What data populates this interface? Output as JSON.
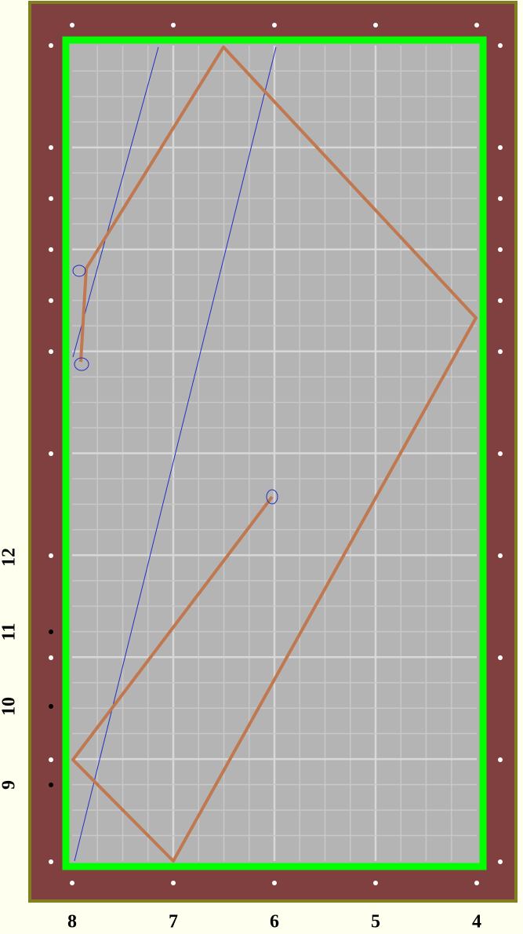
{
  "bottom_labels": [
    "8",
    "7",
    "6",
    "5",
    "4"
  ],
  "side_labels": [
    "12",
    "11",
    "10",
    "9"
  ]
}
